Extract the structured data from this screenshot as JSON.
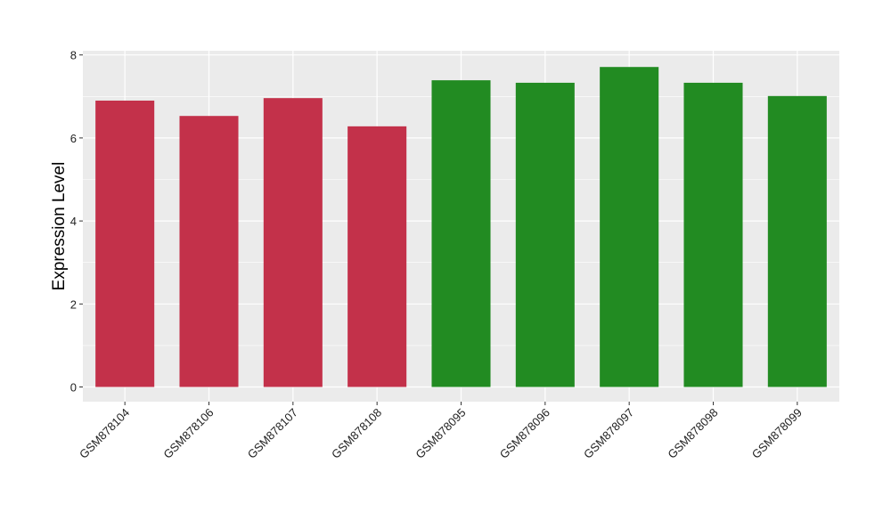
{
  "chart_data": {
    "type": "bar",
    "title": "",
    "xlabel": "",
    "ylabel": "Expression Level",
    "ylim": [
      -0.37,
      8.1
    ],
    "yticks": [
      0,
      2,
      4,
      6,
      8
    ],
    "grid": true,
    "categories": [
      "GSM878104",
      "GSM878106",
      "GSM878107",
      "GSM878108",
      "GSM878095",
      "GSM878096",
      "GSM878097",
      "GSM878098",
      "GSM878099"
    ],
    "values": [
      6.9,
      6.53,
      6.96,
      6.28,
      7.39,
      7.33,
      7.71,
      7.33,
      7.01
    ],
    "colors": [
      "#C3314A",
      "#C3314A",
      "#C3314A",
      "#C3314A",
      "#228B22",
      "#228B22",
      "#228B22",
      "#228B22",
      "#228B22"
    ],
    "panel_background": "#EBEBEB"
  }
}
